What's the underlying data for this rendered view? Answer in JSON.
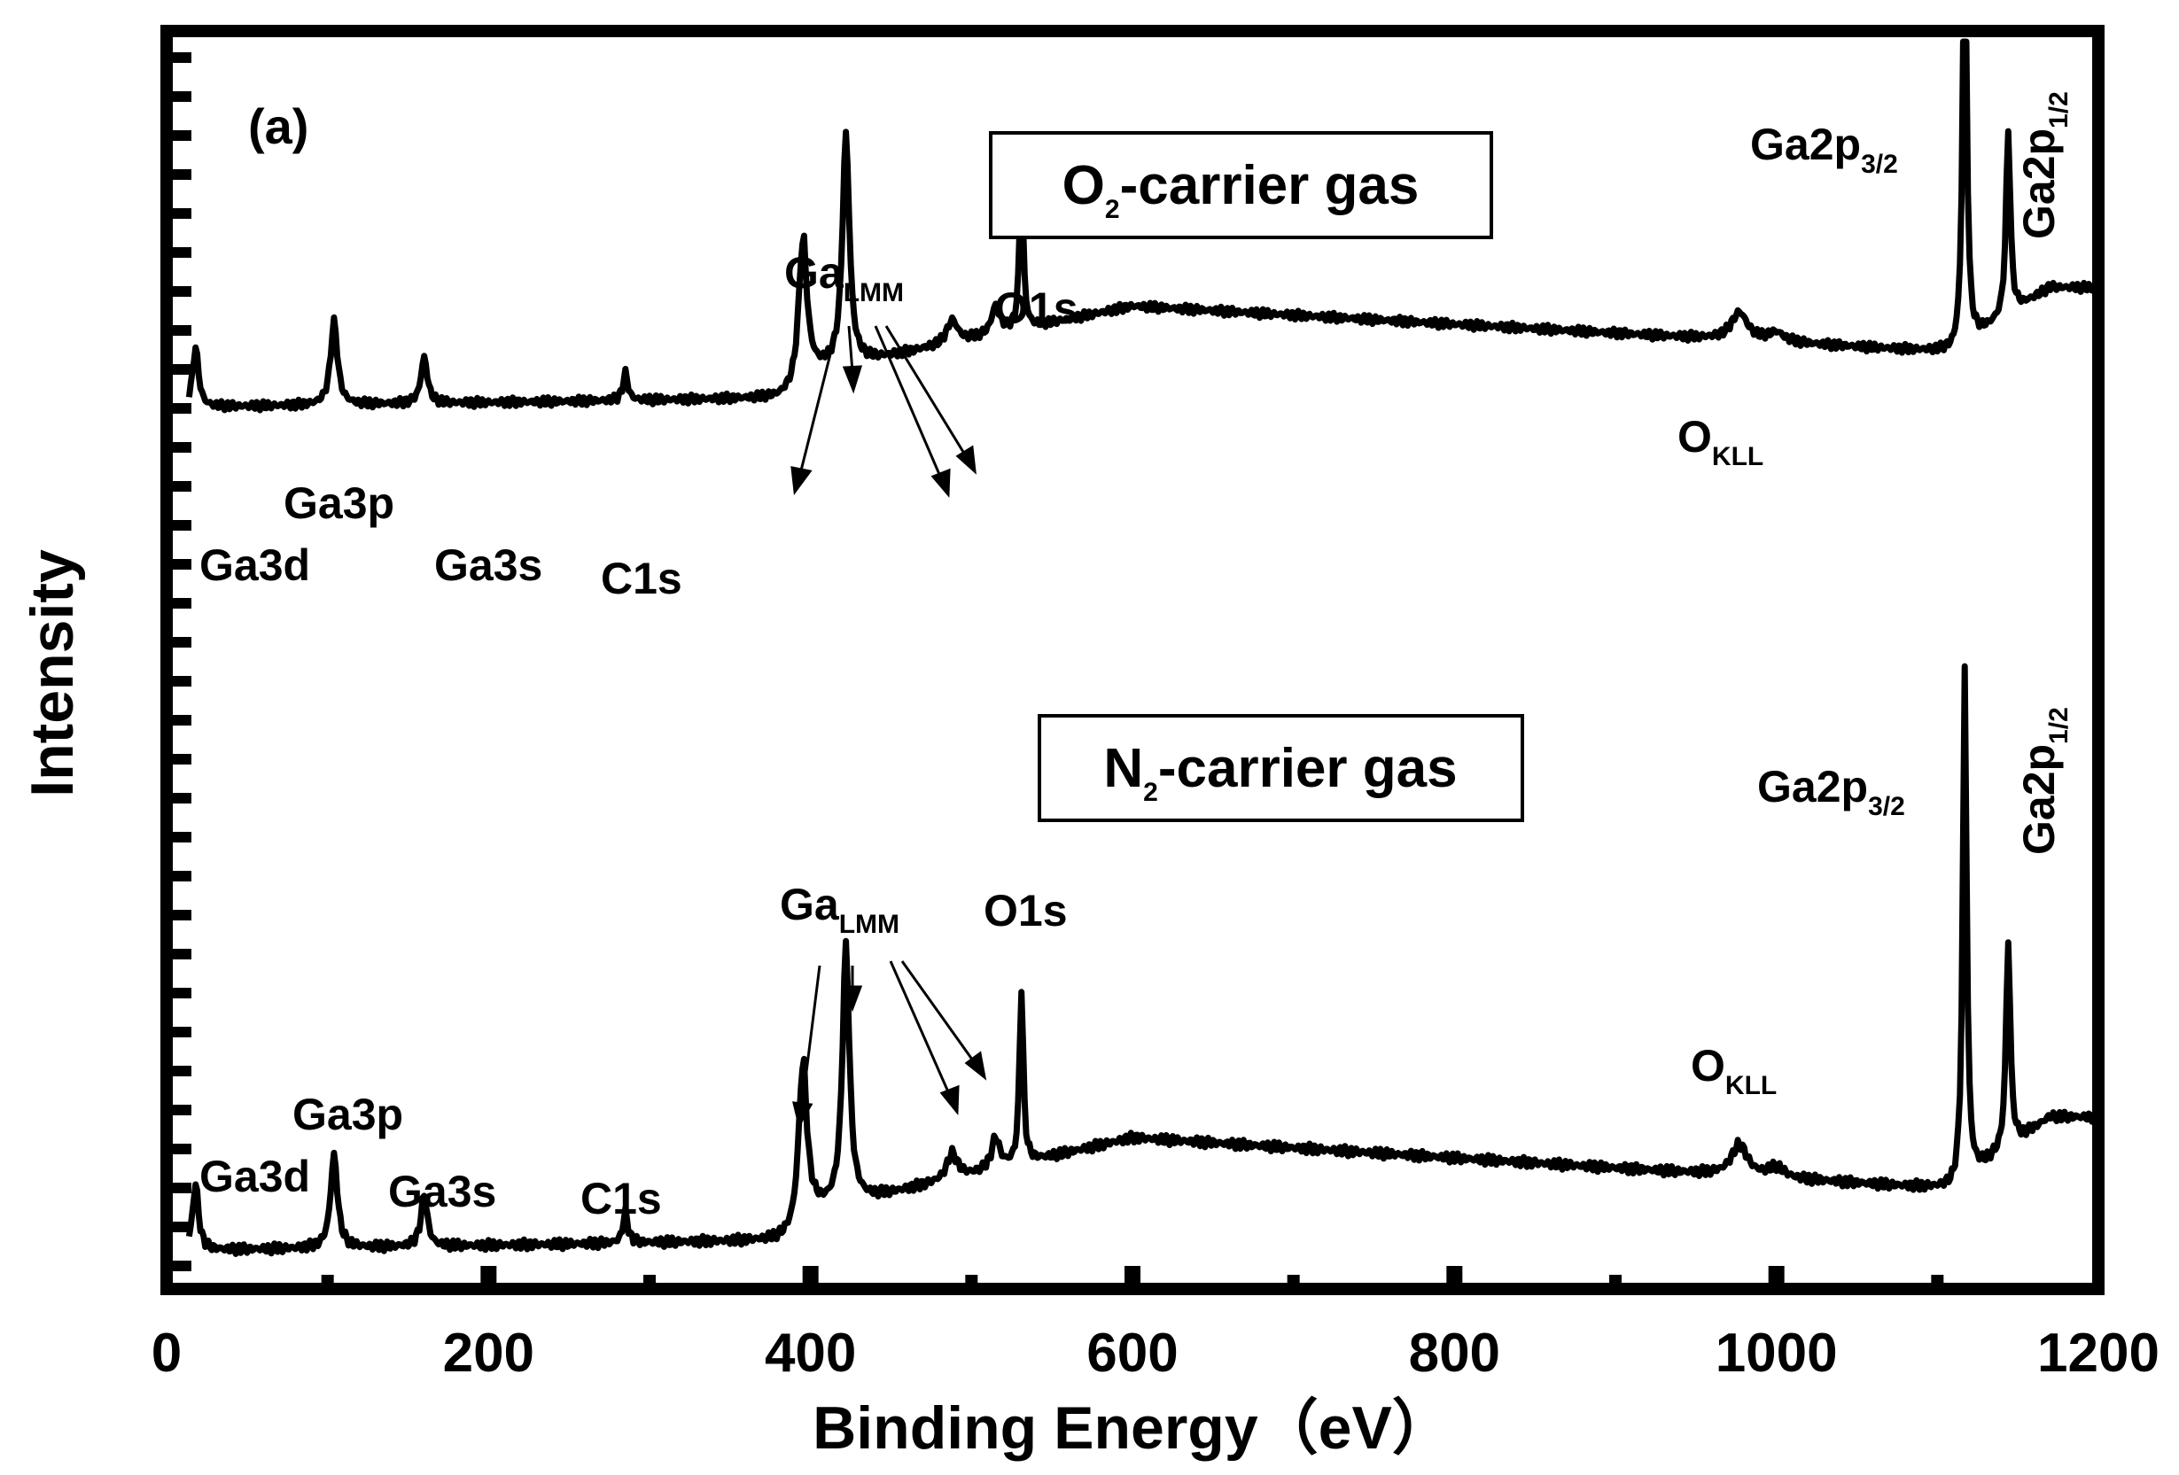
{
  "chart_data": {
    "type": "line",
    "panel_label": "(a)",
    "xlabel": "Binding Energy（eV）",
    "ylabel": "Intensity",
    "xlim": [
      0,
      1200
    ],
    "x_ticks": [
      "0",
      "200",
      "400",
      "600",
      "800",
      "1000",
      "1200"
    ],
    "y_scale": "arbitrary",
    "grid": false,
    "series": [
      {
        "name": "O2-carrier gas",
        "label_main": "O",
        "label_sub": "2",
        "label_rest": "-carrier gas",
        "peaks": [
          {
            "label": "Ga3d",
            "energy": 20
          },
          {
            "label": "Ga3p",
            "energy": 105
          },
          {
            "label": "Ga3s",
            "energy": 160
          },
          {
            "label": "C1s",
            "energy": 285
          },
          {
            "label": "Ga",
            "sub": "LMM",
            "energy": [
              395,
              422,
              485,
              500
            ]
          },
          {
            "label": "O1s",
            "energy": 531
          },
          {
            "label": "O",
            "sub": "KLL",
            "energy": 977
          },
          {
            "label": "Ga2p",
            "sub": "3/2",
            "energy": 1117
          },
          {
            "label": "Ga2p",
            "sub": "1/2",
            "energy": 1144
          }
        ]
      },
      {
        "name": "N2-carrier gas",
        "label_main": "N",
        "label_sub": "2",
        "label_rest": "-carrier gas",
        "peaks": [
          {
            "label": "Ga3d",
            "energy": 20
          },
          {
            "label": "Ga3p",
            "energy": 105
          },
          {
            "label": "Ga3s",
            "energy": 160
          },
          {
            "label": "C1s",
            "energy": 285
          },
          {
            "label": "Ga",
            "sub": "LMM",
            "energy": [
              395,
              422,
              485,
              505
            ]
          },
          {
            "label": "O1s",
            "energy": 531
          },
          {
            "label": "O",
            "sub": "KLL",
            "energy": 977
          },
          {
            "label": "Ga2p",
            "sub": "3/2",
            "energy": 1117
          },
          {
            "label": "Ga2p",
            "sub": "1/2",
            "energy": 1144
          }
        ]
      }
    ]
  }
}
